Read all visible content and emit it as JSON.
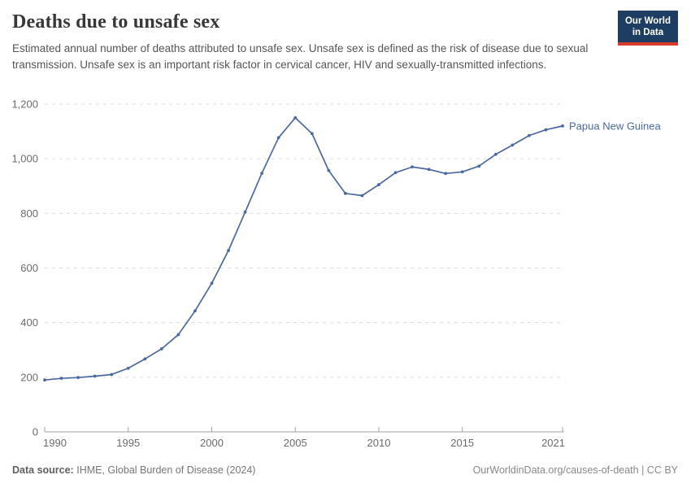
{
  "header": {
    "title": "Deaths due to unsafe sex",
    "subtitle": "Estimated annual number of deaths attributed to unsafe sex. Unsafe sex is defined as the risk of disease due to sexual transmission. Unsafe sex is an important risk factor in cervical cancer, HIV and sexually-transmitted infections.",
    "logo": {
      "line1": "Our World",
      "line2": "in Data"
    }
  },
  "chart_data": {
    "type": "line",
    "title": "Deaths due to unsafe sex",
    "x": [
      1990,
      1991,
      1992,
      1993,
      1994,
      1995,
      1996,
      1997,
      1998,
      1999,
      2000,
      2001,
      2002,
      2003,
      2004,
      2005,
      2006,
      2007,
      2008,
      2009,
      2010,
      2011,
      2012,
      2013,
      2014,
      2015,
      2016,
      2017,
      2018,
      2019,
      2020,
      2021
    ],
    "series": [
      {
        "name": "Papua New Guinea",
        "color": "#4a69a3",
        "values": [
          190,
          196,
          199,
          204,
          210,
          233,
          267,
          304,
          356,
          443,
          544,
          664,
          805,
          947,
          1077,
          1150,
          1092,
          957,
          873,
          865,
          905,
          949,
          970,
          961,
          946,
          952,
          973,
          1016,
          1050,
          1085,
          1106,
          1120
        ]
      }
    ],
    "xlim": [
      1990,
      2021
    ],
    "ylim": [
      0,
      1200
    ],
    "yticks": [
      {
        "v": 0,
        "label": "0"
      },
      {
        "v": 200,
        "label": "200"
      },
      {
        "v": 400,
        "label": "400"
      },
      {
        "v": 600,
        "label": "600"
      },
      {
        "v": 800,
        "label": "800"
      },
      {
        "v": 1000,
        "label": "1,000"
      },
      {
        "v": 1200,
        "label": "1,200"
      }
    ],
    "xticks": [
      {
        "v": 1990,
        "label": "1990"
      },
      {
        "v": 1995,
        "label": "1995"
      },
      {
        "v": 2000,
        "label": "2000"
      },
      {
        "v": 2005,
        "label": "2005"
      },
      {
        "v": 2010,
        "label": "2010"
      },
      {
        "v": 2015,
        "label": "2015"
      },
      {
        "v": 2021,
        "label": "2021"
      }
    ],
    "grid": "horizontal-dashed",
    "legend_position": "end-of-line-label",
    "xlabel": "",
    "ylabel": ""
  },
  "footer": {
    "datasource_label": "Data source:",
    "datasource_value": "IHME, Global Burden of Disease (2024)",
    "credit": "OurWorldinData.org/causes-of-death | CC BY"
  },
  "colors": {
    "line": "#4a69a3",
    "grid": "#dcdcdc",
    "axis": "#a3a3a3",
    "tick_text": "#6b6b6b",
    "logo_bg": "#1d3d63",
    "logo_bar": "#d93a2b"
  }
}
